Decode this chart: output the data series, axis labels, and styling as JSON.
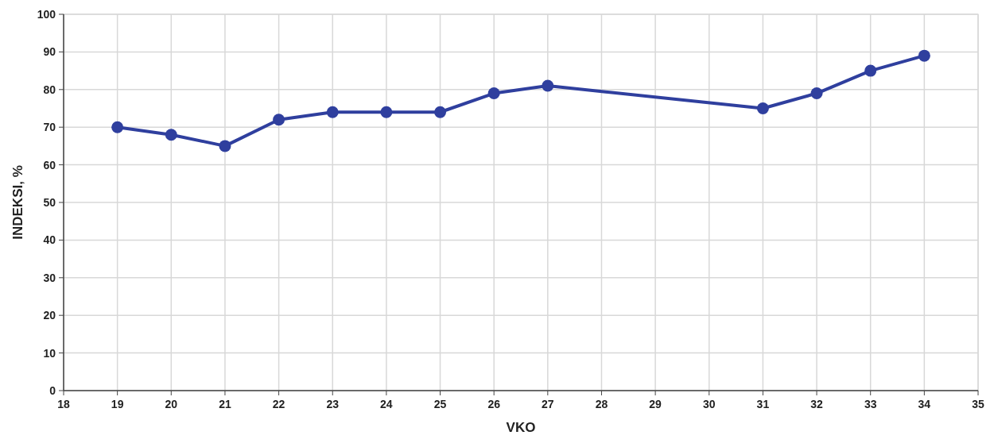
{
  "chart_data": {
    "type": "line",
    "xlabel": "VKO",
    "ylabel": "INDEKSI, %",
    "x": [
      19,
      20,
      21,
      22,
      23,
      24,
      25,
      26,
      27,
      31,
      32,
      33,
      34
    ],
    "series": [
      {
        "color": "#2f3f9e",
        "values": [
          70,
          68,
          65,
          72,
          74,
          74,
          74,
          79,
          81,
          75,
          79,
          85,
          89
        ]
      }
    ],
    "xlim": [
      18,
      35
    ],
    "xticks": [
      18,
      19,
      20,
      21,
      22,
      23,
      24,
      25,
      26,
      27,
      28,
      29,
      30,
      31,
      32,
      33,
      34,
      35
    ],
    "ylim": [
      0,
      100
    ],
    "yticks": [
      0,
      10,
      20,
      30,
      40,
      50,
      60,
      70,
      80,
      90,
      100
    ],
    "grid": true,
    "marker": "circle",
    "line_style": "solid"
  }
}
